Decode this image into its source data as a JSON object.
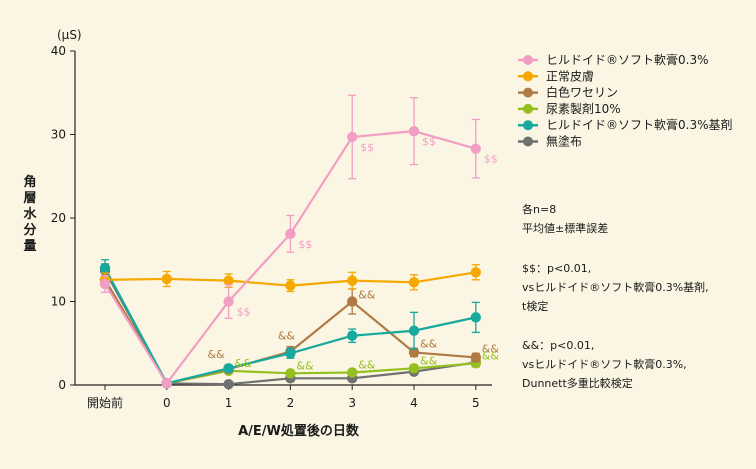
{
  "chart_data": {
    "type": "line",
    "unit_label": "(μS)",
    "ylabel": "角層水分量",
    "xlabel": "A/E/W処置後の日数",
    "ylim": [
      0,
      40
    ],
    "yticks": [
      0,
      10,
      20,
      30,
      40
    ],
    "categories": [
      "開始前",
      "0",
      "1",
      "2",
      "3",
      "4",
      "5"
    ],
    "series": [
      {
        "name": "ヒルドイド®ソフト軟膏0.3%",
        "color": "#f29ec4",
        "values": [
          12.1,
          0.2,
          10.0,
          18.1,
          29.7,
          30.4,
          28.3
        ],
        "err": [
          1.0,
          0.3,
          2.0,
          2.2,
          5.0,
          4.0,
          3.5
        ]
      },
      {
        "name": "正常皮膚",
        "color": "#f5a800",
        "values": [
          12.6,
          12.7,
          12.5,
          11.9,
          12.5,
          12.3,
          13.5
        ],
        "err": [
          0.8,
          0.9,
          0.8,
          0.7,
          1.0,
          0.9,
          0.9
        ]
      },
      {
        "name": "白色ワセリン",
        "color": "#b07a45",
        "values": [
          12.6,
          0.2,
          1.9,
          4.0,
          10.0,
          3.9,
          3.3
        ],
        "err": [
          0.8,
          0.3,
          0.4,
          0.6,
          1.5,
          0.5,
          0.5
        ]
      },
      {
        "name": "尿素製剤10%",
        "color": "#94c020",
        "values": [
          12.6,
          0.2,
          1.7,
          1.4,
          1.5,
          2.0,
          2.6
        ],
        "err": [
          0.8,
          0.3,
          0.3,
          0.3,
          0.3,
          0.4,
          0.4
        ]
      },
      {
        "name": "ヒルドイド®ソフト軟膏0.3%基剤",
        "color": "#17a89e",
        "values": [
          14.0,
          0.2,
          2.0,
          3.8,
          5.9,
          6.5,
          8.1
        ],
        "err": [
          1.0,
          0.3,
          0.4,
          0.6,
          0.8,
          2.2,
          1.8
        ]
      },
      {
        "name": "無塗布",
        "color": "#707070",
        "values": [
          13.7,
          0.2,
          0.1,
          0.8,
          0.8,
          1.6,
          2.7
        ],
        "err": [
          0.8,
          0.2,
          0.2,
          0.2,
          0.2,
          0.3,
          0.5
        ]
      }
    ],
    "annotations": {
      "dollar": {
        "text": "$$",
        "color": "#f29ec4",
        "points": [
          [
            2,
            10.0
          ],
          [
            3,
            18.1
          ],
          [
            4,
            29.7
          ],
          [
            5,
            30.4
          ],
          [
            6,
            28.3
          ]
        ]
      },
      "amp_brown": {
        "text": "&&",
        "color": "#b07a45",
        "points": [
          [
            3,
            4.0
          ],
          [
            4,
            10.0
          ],
          [
            5,
            3.9
          ],
          [
            6,
            3.3
          ]
        ]
      },
      "amp_green": {
        "text": "&&",
        "color": "#94c020",
        "points": [
          [
            2,
            1.7
          ],
          [
            3,
            1.4
          ],
          [
            4,
            1.5
          ],
          [
            5,
            2.0
          ],
          [
            6,
            2.6
          ]
        ]
      }
    },
    "notes": [
      "各n=8",
      "平均値±標準誤差",
      "",
      "$$：p<0.01,",
      "vsヒルドイド®ソフト軟膏0.3%基剤,",
      "t検定",
      "",
      "&&：p<0.01,",
      "vsヒルドイド®ソフト軟膏0.3%,",
      "Dunnett多重比較検定"
    ]
  }
}
